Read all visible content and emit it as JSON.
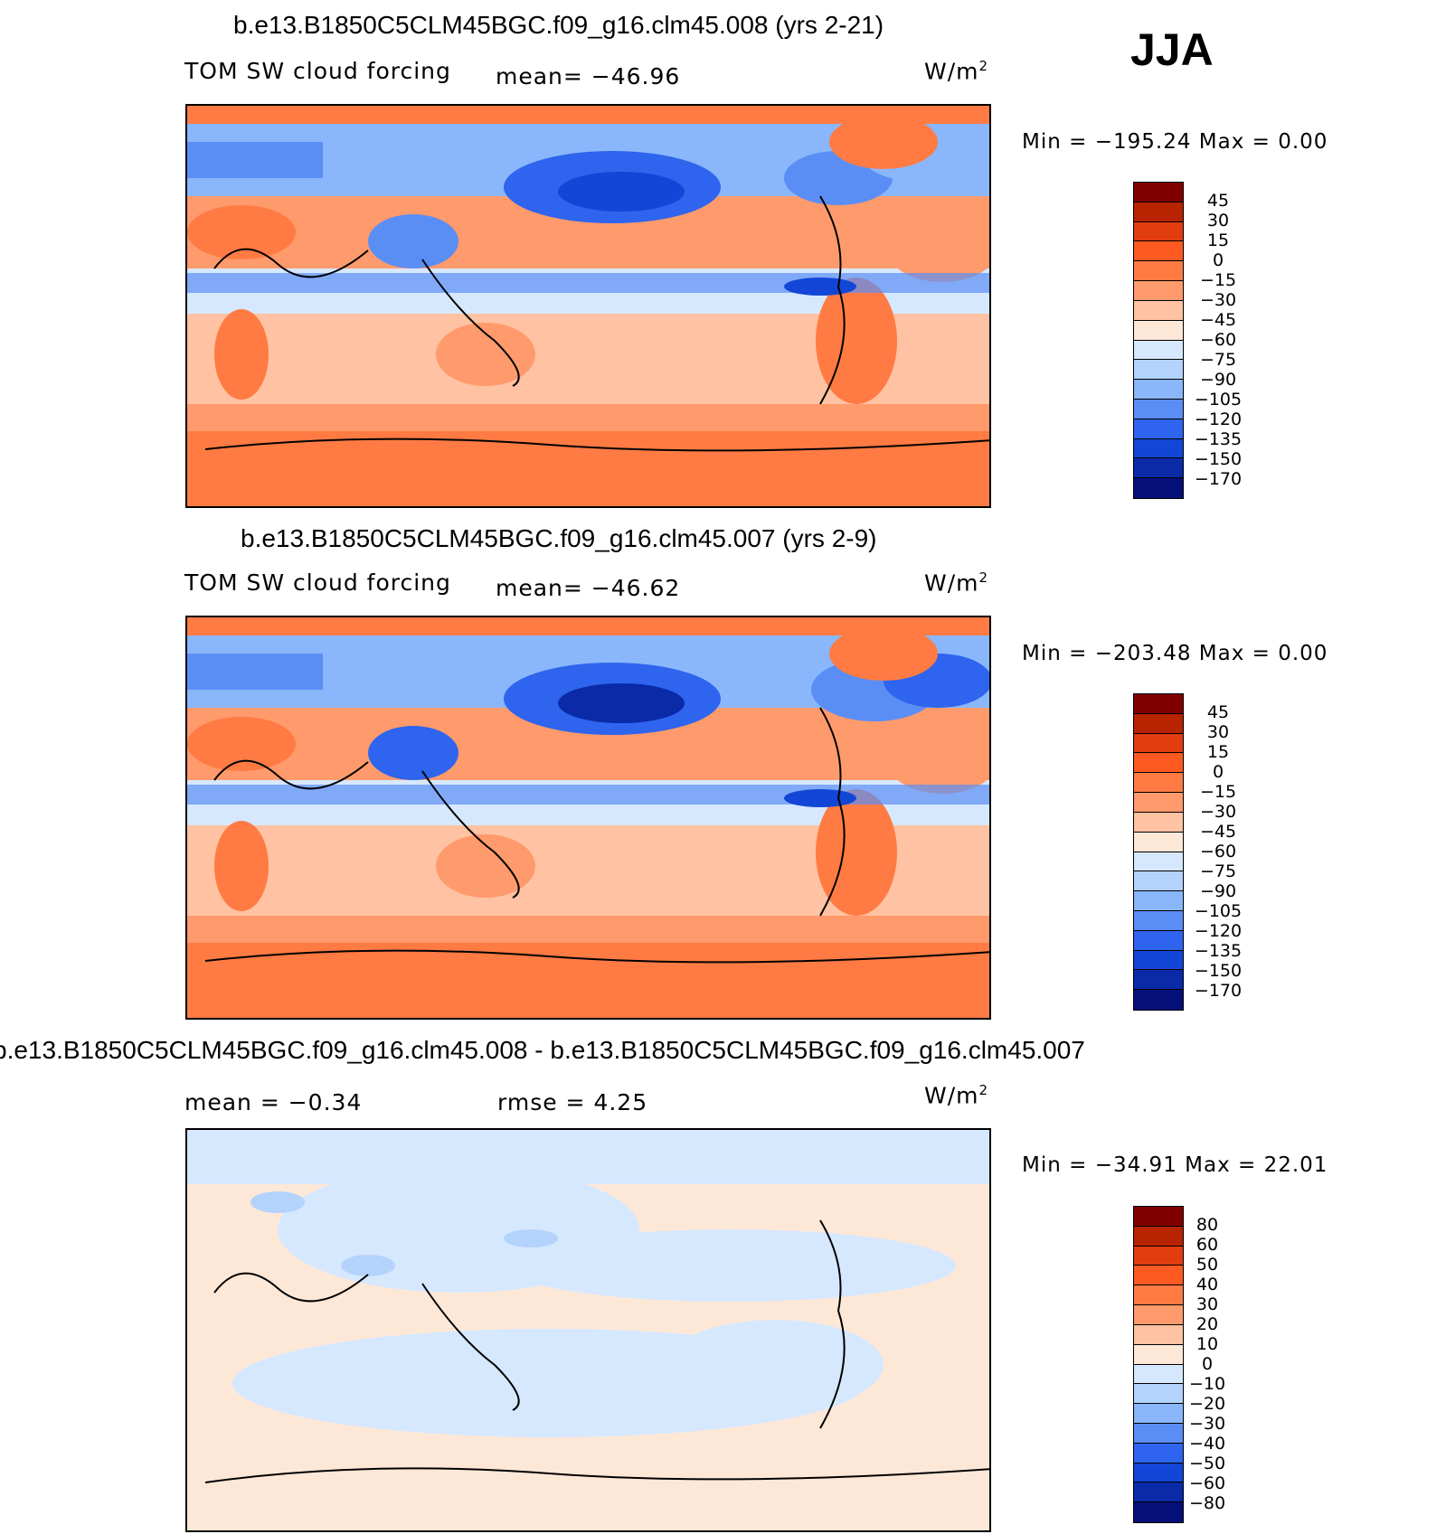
{
  "season": "JJA",
  "units": "W/m",
  "units_sup": "2",
  "panels": [
    {
      "title": "b.e13.B1850C5CLM45BGC.f09_g16.clm45.008 (yrs 2-21)",
      "variable": "TOM SW cloud forcing",
      "stat_left": "",
      "stat": "mean= −46.96",
      "minmax": "Min  =  −195.24  Max  =     0.00",
      "levels": [
        "45",
        "30",
        "15",
        "0",
        "−15",
        "−30",
        "−45",
        "−60",
        "−75",
        "−90",
        "−105",
        "−120",
        "−135",
        "−150",
        "−170"
      ]
    },
    {
      "title": "b.e13.B1850C5CLM45BGC.f09_g16.clm45.007 (yrs 2-9)",
      "variable": "TOM SW cloud forcing",
      "stat_left": "",
      "stat": "mean= −46.62",
      "minmax": "Min  =  −203.48  Max  =     0.00",
      "levels": [
        "45",
        "30",
        "15",
        "0",
        "−15",
        "−30",
        "−45",
        "−60",
        "−75",
        "−90",
        "−105",
        "−120",
        "−135",
        "−150",
        "−170"
      ]
    },
    {
      "title": "b.e13.B1850C5CLM45BGC.f09_g16.clm45.008 - b.e13.B1850C5CLM45BGC.f09_g16.clm45.007",
      "variable": "mean  =    −0.34",
      "stat_left": "rmse  =     4.25",
      "stat": "",
      "minmax": "Min  =  −34.91  Max  =   22.01",
      "levels": [
        "80",
        "60",
        "50",
        "40",
        "30",
        "20",
        "10",
        "0",
        "−10",
        "−20",
        "−30",
        "−40",
        "−50",
        "−60",
        "−80"
      ]
    }
  ],
  "colors": {
    "scale": [
      "#800000",
      "#b82300",
      "#e23d0f",
      "#fd5a21",
      "#ff7b43",
      "#ff9a6c",
      "#ffc2a3",
      "#fde8d8",
      "#d6e8fe",
      "#b3d3fd",
      "#8ab7fb",
      "#5b8ef5",
      "#2e64ee",
      "#1246d6",
      "#0a2aa8",
      "#05107a"
    ],
    "coastline": "#000000"
  }
}
